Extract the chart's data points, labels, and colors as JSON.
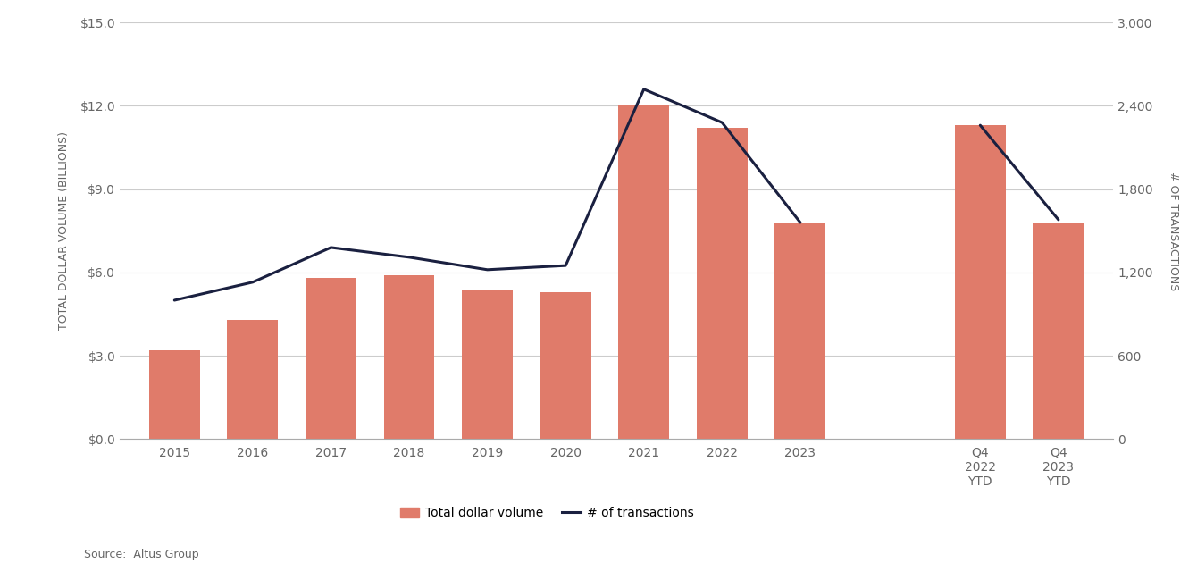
{
  "categories": [
    "2015",
    "2016",
    "2017",
    "2018",
    "2019",
    "2020",
    "2021",
    "2022",
    "2023",
    "Q4\n2022\nYTD",
    "Q4\n2023\nYTD"
  ],
  "bar_values": [
    3.2,
    4.3,
    5.8,
    5.9,
    5.4,
    5.3,
    12.0,
    11.2,
    7.8,
    11.3,
    7.8
  ],
  "line_values": [
    1000,
    1130,
    1380,
    1310,
    1220,
    1250,
    2520,
    2280,
    1560,
    2260,
    1580
  ],
  "bar_color": "#e07b6a",
  "line_color": "#1a2040",
  "ylabel_left": "TOTAL DOLLAR VOLUME (BILLIONS)",
  "ylabel_right": "# OF TRANSACTIONS",
  "ylim_left": [
    0,
    15.0
  ],
  "ylim_right": [
    0,
    3000
  ],
  "yticks_left": [
    0.0,
    3.0,
    6.0,
    9.0,
    12.0,
    15.0
  ],
  "ytick_labels_left": [
    "$0.0",
    "$3.0",
    "$6.0",
    "$9.0",
    "$12.0",
    "$15.0"
  ],
  "yticks_right": [
    0,
    600,
    1200,
    1800,
    2400,
    3000
  ],
  "legend_bar_label": "Total dollar volume",
  "legend_line_label": "# of transactions",
  "source_text": "Source:  Altus Group",
  "background_color": "#ffffff",
  "grid_color": "#cccccc",
  "bar_width": 0.65,
  "line_width": 2.2,
  "tick_fontsize": 10,
  "label_fontsize": 9,
  "legend_fontsize": 10,
  "source_fontsize": 9
}
